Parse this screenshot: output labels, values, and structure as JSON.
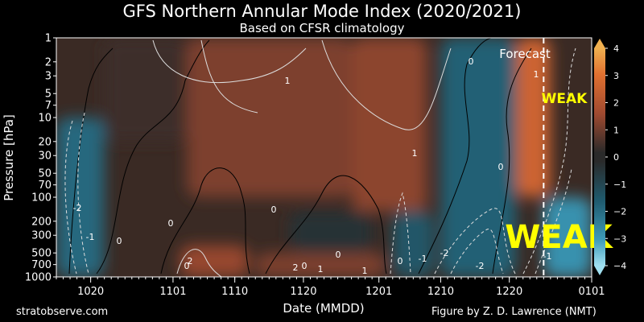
{
  "chart_data": {
    "type": "heatmap",
    "title": "GFS Northern Annular Mode Index (2020/2021)",
    "subtitle": "Based on CFSR climatology",
    "xlabel": "Date (MMDD)",
    "ylabel": "Pressure [hPa]",
    "y_scale": "log",
    "y_reversed": true,
    "ylim": [
      1000,
      1
    ],
    "x_range": [
      "1015",
      "0101"
    ],
    "x_ticks": [
      "1020",
      "1101",
      "1110",
      "1120",
      "1201",
      "1210",
      "1220",
      "0101"
    ],
    "y_ticks": [
      1,
      2,
      3,
      5,
      7,
      10,
      20,
      30,
      50,
      70,
      100,
      200,
      300,
      500,
      700,
      1000
    ],
    "colorbar": {
      "ticks": [
        "4",
        "3",
        "2",
        "1",
        "0",
        "−1",
        "−2",
        "−3",
        "−4"
      ],
      "range": [
        -4,
        4
      ],
      "colors": {
        "pos_high": "#e87a2c",
        "pos_mid": "#9a4a2c",
        "neutral": "#2a2a2a",
        "neg_mid": "#1f5a6e",
        "neg_high": "#4fb0d0"
      }
    },
    "forecast_start": "1225",
    "annotations": [
      {
        "text": "Forecast",
        "color": "#ffffff"
      },
      {
        "text": "WEAK",
        "color": "#ffff00"
      },
      {
        "text": "WEAK",
        "color": "#ffff00"
      }
    ],
    "contour_labels": [
      "-2",
      "-1",
      "0",
      "0",
      "0",
      "1",
      "0",
      "0",
      "1",
      "0",
      "0",
      "-1",
      "-2",
      "0",
      "-2",
      "1",
      "-1",
      "2",
      "1",
      "2",
      "1",
      "0"
    ],
    "regions": [
      {
        "x": "1015-1022",
        "p": "10-1000",
        "value": -1.8
      },
      {
        "x": "1022-1103",
        "p": "1-20",
        "value": 0.3
      },
      {
        "x": "1103-1127",
        "p": "1-100",
        "value": 1.3
      },
      {
        "x": "1118-1130",
        "p": "150-500",
        "value": -0.2
      },
      {
        "x": "1127-1208",
        "p": "1-150",
        "value": 1.6
      },
      {
        "x": "1203-1209",
        "p": "150-1000",
        "value": -1.3
      },
      {
        "x": "1210-1221",
        "p": "1-1000",
        "value": -1.6
      },
      {
        "x": "1221-1226",
        "p": "1-100",
        "value": 2.8
      },
      {
        "x": "1225-0101",
        "p": "100-1000",
        "value": -2.8
      },
      {
        "x": "1102-1112",
        "p": "400-1000",
        "value": 1.8
      },
      {
        "x": "1113-1202",
        "p": "500-1000",
        "value": 1.3
      }
    ]
  },
  "footer": {
    "left": "stratobserve.com",
    "right": "Figure by Z. D. Lawrence (NMT)"
  }
}
